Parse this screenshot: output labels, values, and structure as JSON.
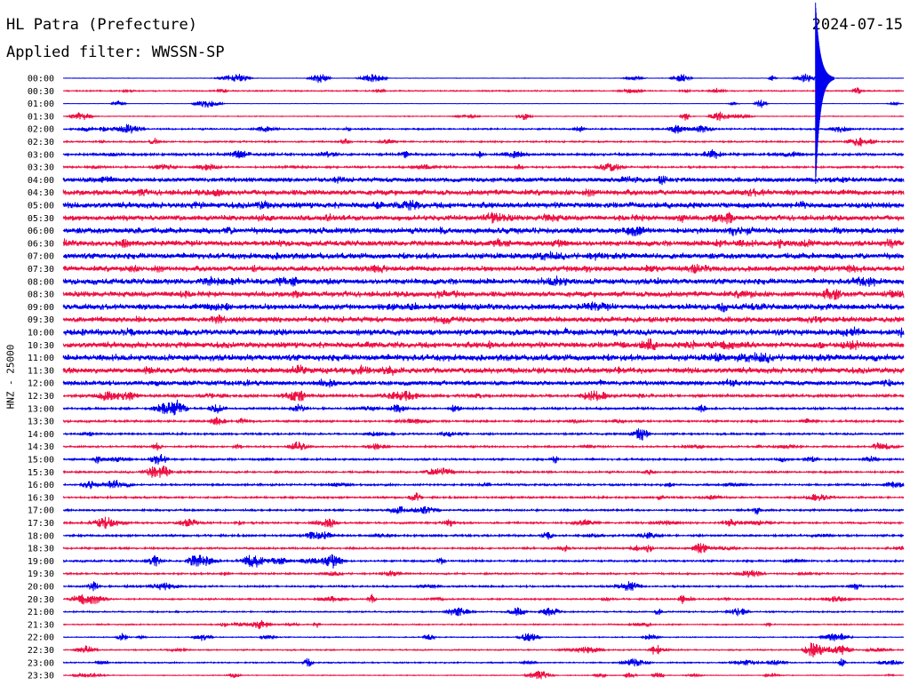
{
  "header": {
    "station": "HL Patra (Prefecture)",
    "date": "2024-07-15",
    "filter": "Applied filter: WWSSN-SP"
  },
  "chart_data": {
    "type": "line",
    "ylabel": "HNZ - 25000",
    "colors": [
      "#0000ee",
      "#ee1144"
    ],
    "rows": [
      "00:00",
      "00:30",
      "01:00",
      "01:30",
      "02:00",
      "02:30",
      "03:00",
      "03:30",
      "04:00",
      "04:30",
      "05:00",
      "05:30",
      "06:00",
      "06:30",
      "07:00",
      "07:30",
      "08:00",
      "08:30",
      "09:00",
      "09:30",
      "10:00",
      "10:30",
      "11:00",
      "11:30",
      "12:00",
      "12:30",
      "13:00",
      "13:30",
      "14:00",
      "14:30",
      "15:00",
      "15:30",
      "16:00",
      "16:30",
      "17:00",
      "17:30",
      "18:00",
      "18:30",
      "19:00",
      "19:30",
      "20:00",
      "20:30",
      "21:00",
      "21:30",
      "22:00",
      "22:30",
      "23:00",
      "23:30"
    ],
    "noise_level": [
      0.3,
      0.8,
      0.2,
      0.5,
      1.0,
      1.0,
      1.5,
      1.2,
      3.2,
      3.8,
      4.0,
      3.6,
      4.0,
      3.8,
      4.0,
      3.6,
      4.0,
      3.8,
      4.0,
      3.8,
      4.2,
      4.0,
      4.4,
      4.0,
      3.2,
      1.8,
      1.3,
      1.3,
      1.2,
      1.1,
      1.2,
      1.2,
      1.2,
      1.2,
      1.2,
      1.2,
      1.3,
      1.2,
      1.2,
      1.1,
      1.1,
      1.0,
      0.9,
      0.8,
      0.6,
      0.8,
      0.8,
      0.5
    ],
    "events": [
      {
        "row": 0,
        "x": 0.895,
        "amplitude": 85,
        "note": "large event"
      }
    ]
  }
}
